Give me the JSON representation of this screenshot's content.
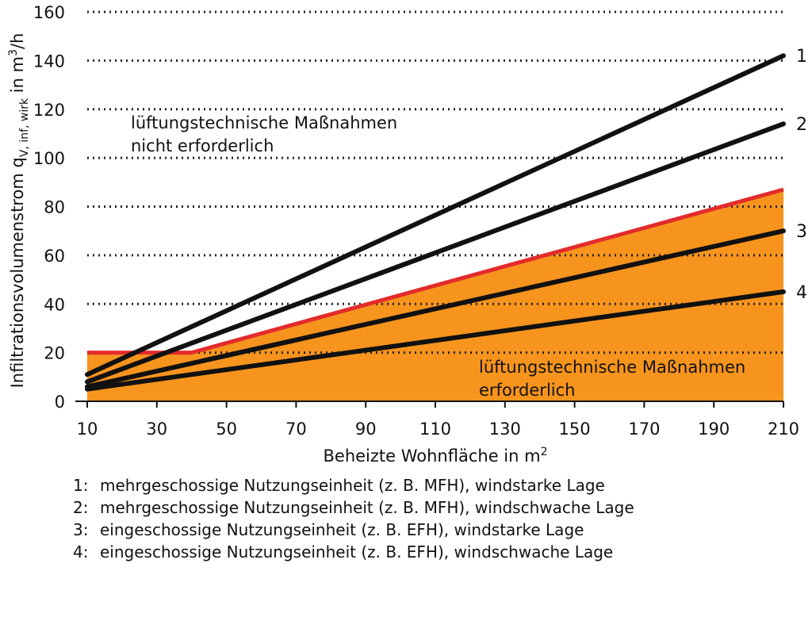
{
  "chart_data": {
    "type": "line",
    "xlabel": "Beheizte Wohnfläche in m",
    "xlabel_sup": "2",
    "ylabel_parts": {
      "main": "Infiltrationsvolumenstrom  q",
      "sub": "V, inf, wirk",
      "unit_pre": " in m",
      "unit_sup": "3",
      "unit_post": "/h"
    },
    "xlim": [
      10,
      210
    ],
    "ylim": [
      0,
      160
    ],
    "x_ticks": [
      10,
      30,
      50,
      70,
      90,
      110,
      130,
      150,
      170,
      190,
      210
    ],
    "y_ticks": [
      0,
      20,
      40,
      60,
      80,
      100,
      120,
      140,
      160
    ],
    "grid": "horizontal dotted",
    "colors": {
      "area_fill": "#F7941D",
      "threshold_line": "#E32B2B",
      "series_line": "#111111",
      "grid": "#222222"
    },
    "area": {
      "label_lines": [
        "lüftungstechnische Maßnahmen",
        "erforderlich"
      ],
      "boundary": {
        "x": [
          10,
          40,
          210
        ],
        "y": [
          20,
          20,
          87
        ]
      }
    },
    "upper_region_label_lines": [
      "lüftungstechnische Maßnahmen",
      "nicht erforderlich"
    ],
    "series": [
      {
        "name": "1",
        "x": [
          10,
          210
        ],
        "y": [
          11,
          142
        ]
      },
      {
        "name": "2",
        "x": [
          10,
          210
        ],
        "y": [
          8,
          114
        ]
      },
      {
        "name": "3",
        "x": [
          10,
          210
        ],
        "y": [
          6,
          70
        ]
      },
      {
        "name": "4",
        "x": [
          10,
          210
        ],
        "y": [
          5,
          45
        ]
      }
    ]
  },
  "legend": [
    {
      "num": "1:",
      "text": "mehrgeschossige Nutzungseinheit (z. B. MFH), windstarke Lage"
    },
    {
      "num": "2:",
      "text": "mehrgeschossige Nutzungseinheit (z. B. MFH), windschwache Lage"
    },
    {
      "num": "3:",
      "text": "eingeschossige Nutzungseinheit (z. B. EFH), windstarke Lage"
    },
    {
      "num": "4:",
      "text": "eingeschossige Nutzungseinheit (z. B. EFH), windschwache Lage"
    }
  ]
}
